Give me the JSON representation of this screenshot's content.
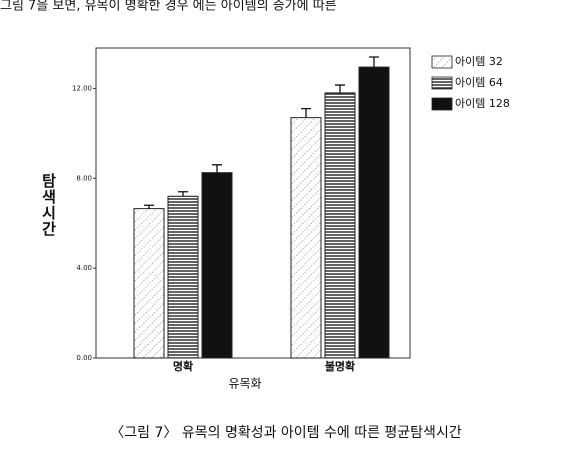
{
  "header_text": "그림 7을 보면, 유목이 명확한 경우 에는 아이템의 증가에 따른",
  "chart_data": {
    "type": "bar",
    "y_label": "탐색시간",
    "x_label": "유목화",
    "caption": "〈그림 7〉 유목의 명확성과 아이템 수에 따른 평균탐색시간",
    "categories": [
      "명확",
      "불명확"
    ],
    "series": [
      {
        "name": "아이템 32",
        "color": "#ffffff",
        "pattern": "dots",
        "values": [
          6.65,
          10.7
        ],
        "errors": [
          0.15,
          0.4
        ]
      },
      {
        "name": "아이템 64",
        "color": "#ffffff",
        "pattern": "hlines",
        "values": [
          7.2,
          11.8
        ],
        "errors": [
          0.2,
          0.35
        ]
      },
      {
        "name": "아이템 128",
        "color": "#111111",
        "pattern": "solid",
        "values": [
          8.25,
          12.95
        ],
        "errors": [
          0.35,
          0.45
        ]
      }
    ],
    "ylim": [
      0,
      13.8
    ],
    "yticks": [
      {
        "value": 0,
        "label": "0.00"
      },
      {
        "value": 4,
        "label": "4.00"
      },
      {
        "value": 8,
        "label": "8.00"
      },
      {
        "value": 12,
        "label": "12.00"
      }
    ],
    "legend": "outside-right"
  }
}
